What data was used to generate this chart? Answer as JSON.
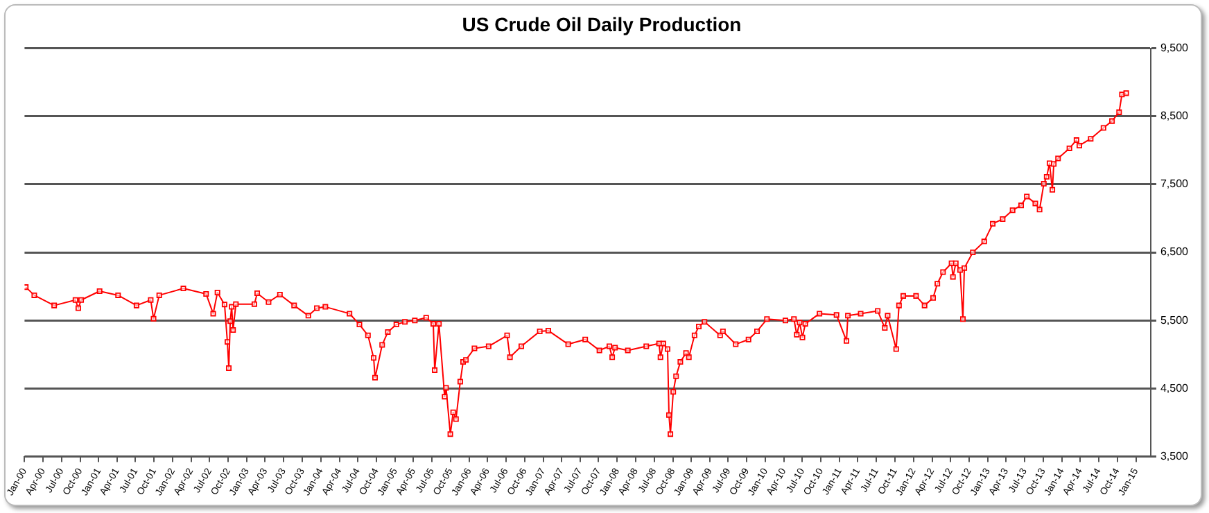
{
  "chart_data": {
    "type": "line",
    "title": "US Crude Oil Daily Production",
    "x": [
      "2000-01-07",
      "2000-02-18",
      "2000-05-26",
      "2000-09-08",
      "2000-09-22",
      "2000-10-06",
      "2001-01-05",
      "2001-04-06",
      "2001-07-06",
      "2001-09-14",
      "2001-09-28",
      "2001-10-26",
      "2002-02-22",
      "2002-06-14",
      "2002-07-19",
      "2002-08-09",
      "2002-09-13",
      "2002-09-27",
      "2002-10-04",
      "2002-10-11",
      "2002-10-18",
      "2002-10-25",
      "2002-11-08",
      "2003-02-07",
      "2003-02-21",
      "2003-04-18",
      "2003-06-13",
      "2003-08-22",
      "2003-10-31",
      "2003-12-12",
      "2004-01-23",
      "2004-05-21",
      "2004-07-09",
      "2004-08-20",
      "2004-09-17",
      "2004-09-24",
      "2004-10-29",
      "2004-11-26",
      "2005-01-07",
      "2005-02-18",
      "2005-04-08",
      "2005-06-03",
      "2005-07-08",
      "2005-07-15",
      "2005-08-05",
      "2005-09-02",
      "2005-09-09",
      "2005-09-30",
      "2005-10-14",
      "2005-10-28",
      "2005-11-18",
      "2005-12-02",
      "2005-12-16",
      "2006-01-27",
      "2006-04-07",
      "2006-07-07",
      "2006-07-21",
      "2006-09-15",
      "2006-12-15",
      "2007-01-26",
      "2007-05-04",
      "2007-07-27",
      "2007-10-05",
      "2007-11-23",
      "2007-12-07",
      "2007-12-21",
      "2008-02-22",
      "2008-05-23",
      "2008-07-25",
      "2008-08-01",
      "2008-08-15",
      "2008-09-05",
      "2008-09-12",
      "2008-09-19",
      "2008-10-03",
      "2008-10-17",
      "2008-11-07",
      "2008-12-05",
      "2008-12-19",
      "2009-01-16",
      "2009-02-06",
      "2009-03-06",
      "2009-05-22",
      "2009-06-05",
      "2009-08-07",
      "2009-10-09",
      "2009-11-20",
      "2010-01-08",
      "2010-04-09",
      "2010-05-21",
      "2010-06-04",
      "2010-06-18",
      "2010-07-02",
      "2010-07-16",
      "2010-09-24",
      "2010-12-17",
      "2011-02-04",
      "2011-02-11",
      "2011-04-15",
      "2011-07-08",
      "2011-08-12",
      "2011-08-26",
      "2011-10-07",
      "2011-10-21",
      "2011-11-11",
      "2012-01-13",
      "2012-02-24",
      "2012-04-06",
      "2012-04-27",
      "2012-05-25",
      "2012-07-06",
      "2012-07-13",
      "2012-07-27",
      "2012-08-17",
      "2012-08-31",
      "2012-09-07",
      "2012-10-19",
      "2012-12-14",
      "2013-01-25",
      "2013-03-15",
      "2013-05-03",
      "2013-06-14",
      "2013-07-12",
      "2013-08-23",
      "2013-09-13",
      "2013-10-04",
      "2013-10-18",
      "2013-11-01",
      "2013-11-15",
      "2013-11-22",
      "2013-12-13",
      "2014-02-07",
      "2014-03-14",
      "2014-03-28",
      "2014-05-23",
      "2014-07-25",
      "2014-09-05",
      "2014-10-10",
      "2014-10-24",
      "2014-11-14"
    ],
    "series": [
      {
        "color": "#ff0000",
        "values": [
          5990,
          5870,
          5720,
          5800,
          5680,
          5800,
          5930,
          5870,
          5720,
          5800,
          5525,
          5870,
          5970,
          5890,
          5600,
          5910,
          5735,
          5185,
          4800,
          5490,
          5700,
          5360,
          5740,
          5740,
          5900,
          5770,
          5880,
          5720,
          5570,
          5680,
          5700,
          5600,
          5440,
          5280,
          4950,
          4660,
          5140,
          5330,
          5440,
          5480,
          5500,
          5540,
          5450,
          4770,
          5450,
          4380,
          4510,
          3830,
          4150,
          4050,
          4600,
          4890,
          4920,
          5090,
          5120,
          5280,
          4960,
          5120,
          5340,
          5350,
          5150,
          5220,
          5060,
          5120,
          4960,
          5100,
          5060,
          5120,
          5160,
          4960,
          5160,
          5080,
          4110,
          3830,
          4450,
          4680,
          4890,
          5020,
          4960,
          5280,
          5410,
          5480,
          5280,
          5340,
          5150,
          5220,
          5340,
          5520,
          5500,
          5520,
          5290,
          5470,
          5250,
          5450,
          5600,
          5580,
          5200,
          5570,
          5600,
          5640,
          5390,
          5570,
          5080,
          5720,
          5860,
          5860,
          5720,
          5830,
          6040,
          6210,
          6340,
          6140,
          6340,
          6240,
          5520,
          6270,
          6500,
          6660,
          6920,
          6990,
          7120,
          7190,
          7320,
          7220,
          7130,
          7510,
          7610,
          7810,
          7420,
          7800,
          7880,
          8030,
          8150,
          8070,
          8170,
          8330,
          8430,
          8560,
          8820,
          8840
        ]
      }
    ],
    "xlim": [
      "2000-01-01",
      "2015-03-15"
    ],
    "xticks": [
      {
        "value": "2000-01",
        "label": "Jan-00"
      },
      {
        "value": "2000-04",
        "label": "Apr-00"
      },
      {
        "value": "2000-07",
        "label": "Jul-00"
      },
      {
        "value": "2000-10",
        "label": "Oct-00"
      },
      {
        "value": "2001-01",
        "label": "Jan-01"
      },
      {
        "value": "2001-04",
        "label": "Apr-01"
      },
      {
        "value": "2001-07",
        "label": "Jul-01"
      },
      {
        "value": "2001-10",
        "label": "Oct-01"
      },
      {
        "value": "2002-01",
        "label": "Jan-02"
      },
      {
        "value": "2002-04",
        "label": "Apr-02"
      },
      {
        "value": "2002-07",
        "label": "Jul-02"
      },
      {
        "value": "2002-10",
        "label": "Oct-02"
      },
      {
        "value": "2003-01",
        "label": "Jan-03"
      },
      {
        "value": "2003-04",
        "label": "Apr-03"
      },
      {
        "value": "2003-07",
        "label": "Jul-03"
      },
      {
        "value": "2003-10",
        "label": "Oct-03"
      },
      {
        "value": "2004-01",
        "label": "Jan-04"
      },
      {
        "value": "2004-04",
        "label": "Apr-04"
      },
      {
        "value": "2004-07",
        "label": "Jul-04"
      },
      {
        "value": "2004-10",
        "label": "Oct-04"
      },
      {
        "value": "2005-01",
        "label": "Jan-05"
      },
      {
        "value": "2005-04",
        "label": "Apr-05"
      },
      {
        "value": "2005-07",
        "label": "Jul-05"
      },
      {
        "value": "2005-10",
        "label": "Oct-05"
      },
      {
        "value": "2006-01",
        "label": "Jan-06"
      },
      {
        "value": "2006-04",
        "label": "Apr-06"
      },
      {
        "value": "2006-07",
        "label": "Jul-06"
      },
      {
        "value": "2006-10",
        "label": "Oct-06"
      },
      {
        "value": "2007-01",
        "label": "Jan-07"
      },
      {
        "value": "2007-04",
        "label": "Apr-07"
      },
      {
        "value": "2007-07",
        "label": "Jul-07"
      },
      {
        "value": "2007-10",
        "label": "Oct-07"
      },
      {
        "value": "2008-01",
        "label": "Jan-08"
      },
      {
        "value": "2008-04",
        "label": "Apr-08"
      },
      {
        "value": "2008-07",
        "label": "Jul-08"
      },
      {
        "value": "2008-10",
        "label": "Oct-08"
      },
      {
        "value": "2009-01",
        "label": "Jan-09"
      },
      {
        "value": "2009-04",
        "label": "Apr-09"
      },
      {
        "value": "2009-07",
        "label": "Jul-09"
      },
      {
        "value": "2009-10",
        "label": "Oct-09"
      },
      {
        "value": "2010-01",
        "label": "Jan-10"
      },
      {
        "value": "2010-04",
        "label": "Apr-10"
      },
      {
        "value": "2010-07",
        "label": "Jul-10"
      },
      {
        "value": "2010-10",
        "label": "Oct-10"
      },
      {
        "value": "2011-01",
        "label": "Jan-11"
      },
      {
        "value": "2011-04",
        "label": "Apr-11"
      },
      {
        "value": "2011-07",
        "label": "Jul-11"
      },
      {
        "value": "2011-10",
        "label": "Oct-11"
      },
      {
        "value": "2012-01",
        "label": "Jan-12"
      },
      {
        "value": "2012-04",
        "label": "Apr-12"
      },
      {
        "value": "2012-07",
        "label": "Jul-12"
      },
      {
        "value": "2012-10",
        "label": "Oct-12"
      },
      {
        "value": "2013-01",
        "label": "Jan-13"
      },
      {
        "value": "2013-04",
        "label": "Apr-13"
      },
      {
        "value": "2013-07",
        "label": "Jul-13"
      },
      {
        "value": "2013-10",
        "label": "Oct-13"
      },
      {
        "value": "2014-01",
        "label": "Jan-14"
      },
      {
        "value": "2014-04",
        "label": "Apr-14"
      },
      {
        "value": "2014-07",
        "label": "Jul-14"
      },
      {
        "value": "2014-10",
        "label": "Oct-14"
      },
      {
        "value": "2015-01",
        "label": "Jan-15"
      }
    ],
    "ylim": [
      3500,
      9500
    ],
    "yticks": [
      {
        "value": 3500,
        "label": "3,500"
      },
      {
        "value": 4500,
        "label": "4,500"
      },
      {
        "value": 5500,
        "label": "5,500"
      },
      {
        "value": 6500,
        "label": "6,500"
      },
      {
        "value": 7500,
        "label": "7,500"
      },
      {
        "value": 8500,
        "label": "8,500"
      },
      {
        "value": 9500,
        "label": "9,500"
      }
    ],
    "grid": "y",
    "marker": "square",
    "line_style": "solid"
  }
}
